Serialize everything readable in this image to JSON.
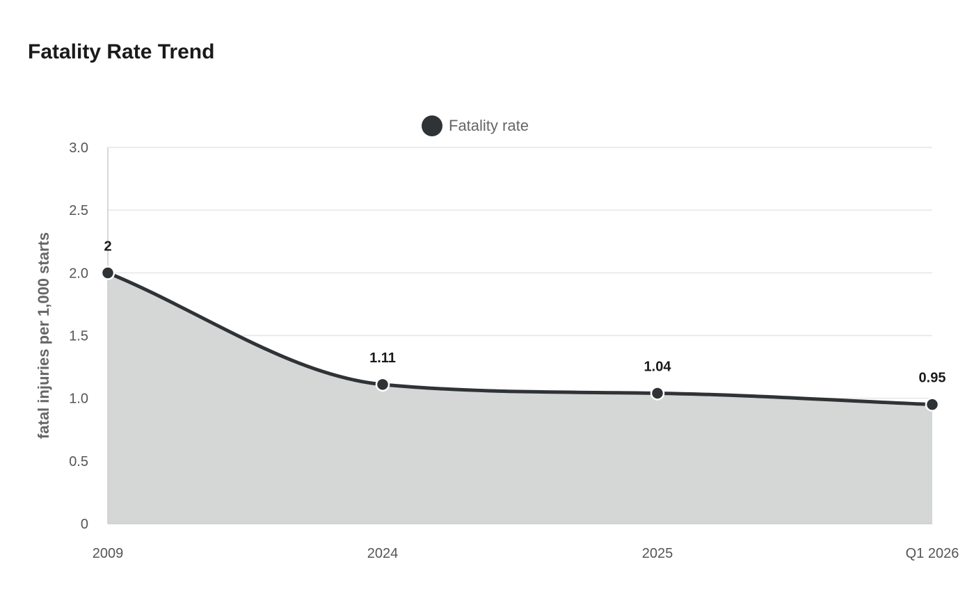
{
  "chart_data": {
    "type": "area",
    "title": "Fatality Rate Trend",
    "categories": [
      "2009",
      "2024",
      "2025",
      "Q1 2026"
    ],
    "series": [
      {
        "name": "Fatality rate",
        "values": [
          2,
          1.11,
          1.04,
          0.95
        ],
        "data_labels": [
          "2",
          "1.11",
          "1.04",
          "0.95"
        ]
      }
    ],
    "xlabel": "",
    "ylabel": "fatal injuries per 1,000 starts",
    "ylim": [
      0,
      3
    ],
    "yticks": [
      "0",
      "0.5",
      "1.0",
      "1.5",
      "2.0",
      "2.5",
      "3.0"
    ],
    "ytick_values": [
      0,
      0.5,
      1,
      1.5,
      2,
      2.5,
      3
    ],
    "grid": true,
    "legend": "top-center",
    "colors": {
      "line": "#2f3336",
      "fill": "#d5d6d6",
      "grid": "#e6e6e6",
      "axis": "#cccccc"
    }
  }
}
